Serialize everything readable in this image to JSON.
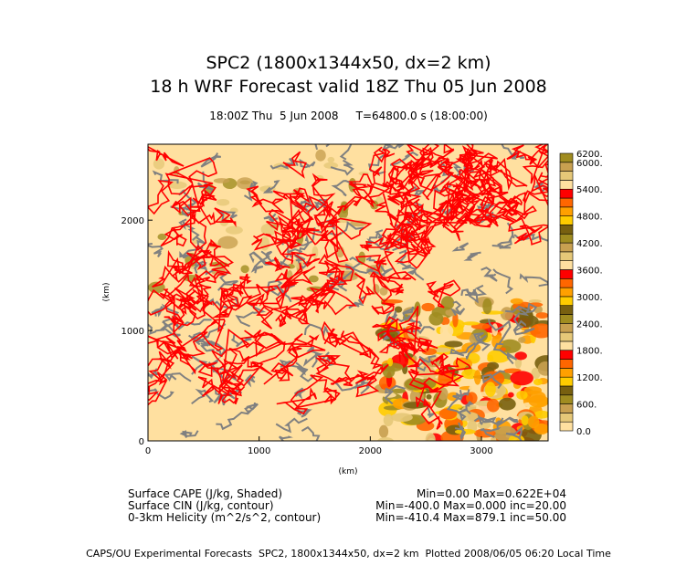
{
  "header": {
    "title_line1": "SPC2 (1800x1344x50, dx=2 km)",
    "title_line2": "18 h WRF Forecast valid 18Z Thu 05 Jun 2008",
    "subtitle": "18:00Z Thu  5 Jun 2008     T=64800.0 s (18:00:00)"
  },
  "chart_data": {
    "type": "heatmap",
    "xlabel": "(km)",
    "ylabel": "(km)",
    "xlim": [
      0,
      3600
    ],
    "ylim": [
      0,
      2688
    ],
    "x_ticks": [
      "0",
      "1000",
      "2000",
      "3000"
    ],
    "y_ticks": [
      "0",
      "1000",
      "2000"
    ],
    "colorbar": {
      "min": 0,
      "max": 6200,
      "step": 200,
      "labels": [
        "0.0",
        "600.",
        "1200.",
        "1800.",
        "2400.",
        "3000.",
        "3600.",
        "4200.",
        "4800.",
        "5400.",
        "6000.",
        "6200."
      ],
      "color_cycle": [
        "#FFE0A0",
        "#E6C878",
        "#C8A050",
        "#A08C20",
        "#786010",
        "#FFCC00",
        "#FFA000",
        "#FF6600",
        "#FF0000"
      ]
    },
    "fields": [
      {
        "name": "Surface CAPE (J/kg, Shaded)",
        "stats": "Min=0.00 Max=0.622E+04"
      },
      {
        "name": "Surface CIN (J/kg, contour)",
        "stats": "Min=-400.0 Max=0.000 inc=20.00"
      },
      {
        "name": "0-3km Helicity (m^2/s^2, contour)",
        "stats": "Min=-410.4 Max=879.1 inc=50.00"
      }
    ],
    "contour_colors": {
      "cin": "#808080",
      "helicity": "#FF0000"
    }
  },
  "footer": "CAPS/OU Experimental Forecasts  SPC2, 1800x1344x50, dx=2 km  Plotted 2008/06/05 06:20 Local Time"
}
